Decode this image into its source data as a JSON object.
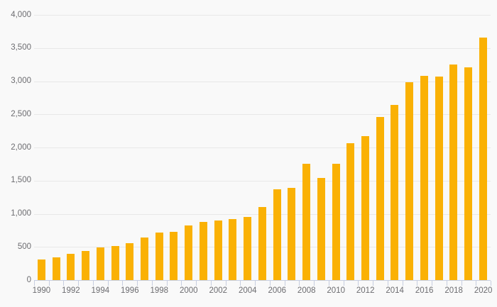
{
  "chart_data": {
    "type": "bar",
    "categories": [
      "1990",
      "1991",
      "1992",
      "1993",
      "1994",
      "1995",
      "1996",
      "1997",
      "1998",
      "1999",
      "2000",
      "2001",
      "2002",
      "2003",
      "2004",
      "2005",
      "2006",
      "2007",
      "2008",
      "2009",
      "2010",
      "2011",
      "2012",
      "2013",
      "2014",
      "2015",
      "2016",
      "2017",
      "2018",
      "2019",
      "2020"
    ],
    "values": [
      310,
      345,
      400,
      440,
      490,
      515,
      560,
      640,
      715,
      730,
      820,
      875,
      900,
      915,
      950,
      1105,
      1365,
      1395,
      1755,
      1540,
      1755,
      2060,
      2175,
      2460,
      2645,
      2985,
      3080,
      3070,
      3250,
      3210,
      3660
    ],
    "x_tick_labels": [
      "1990",
      "1992",
      "1994",
      "1996",
      "1998",
      "2000",
      "2002",
      "2004",
      "2006",
      "2008",
      "2010",
      "2012",
      "2014",
      "2016",
      "2018",
      "2020"
    ],
    "y_tick_values": [
      0,
      500,
      1000,
      1500,
      2000,
      2500,
      3000,
      3500,
      4000
    ],
    "y_tick_labels": [
      "0",
      "500",
      "1,000",
      "1,500",
      "2,000",
      "2,500",
      "3,000",
      "3,500",
      "4,000"
    ],
    "ylim": [
      0,
      4000
    ],
    "grid": "horizontal",
    "legend": "none",
    "colors": {
      "bar": "#FAB104",
      "background": "#F9F9F9",
      "gridline": "#E8E8E8",
      "axis": "#C7CEE0",
      "tick_label": "#6C6C70"
    }
  }
}
